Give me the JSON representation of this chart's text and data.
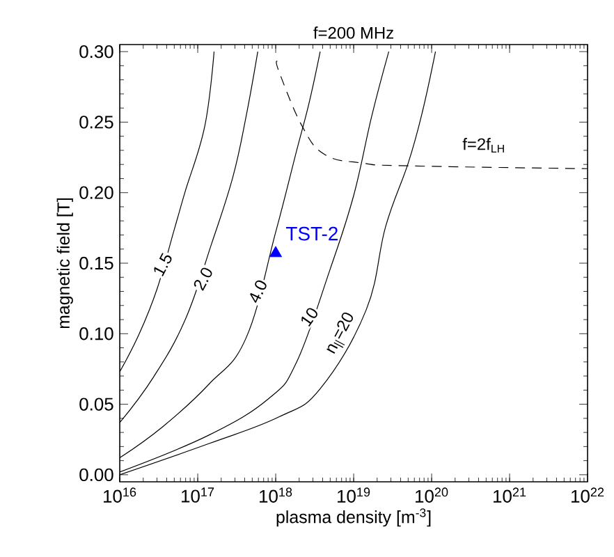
{
  "chart_data": {
    "type": "line",
    "title": "f=200 MHz",
    "xlabel": "plasma density [m$^{-3}$]",
    "ylabel": "magnetic field [T]",
    "log": "x",
    "grid": false,
    "legend": false,
    "marker": "none",
    "xlim": [
      1e+16,
      1e+22
    ],
    "ylim": [
      -0.005,
      0.305
    ],
    "xticks": [
      {
        "value": 1e+16,
        "label": "10$^{16}$"
      },
      {
        "value": 1e+17,
        "label": "10$^{17}$"
      },
      {
        "value": 1e+18,
        "label": "10$^{18}$"
      },
      {
        "value": 1e+19,
        "label": "10$^{19}$"
      },
      {
        "value": 1e+20,
        "label": "10$^{20}$"
      },
      {
        "value": 1e+21,
        "label": "10$^{21}$"
      },
      {
        "value": 1e+22,
        "label": "10$^{22}$"
      }
    ],
    "yticks": [
      {
        "value": 0,
        "label": "0.00"
      },
      {
        "value": 0.05,
        "label": "0.05"
      },
      {
        "value": 0.1,
        "label": "0.10"
      },
      {
        "value": 0.15,
        "label": "0.15"
      },
      {
        "value": 0.2,
        "label": "0.20"
      },
      {
        "value": 0.25,
        "label": "0.25"
      },
      {
        "value": 0.3,
        "label": "0.30"
      }
    ],
    "series": [
      {
        "color": "#000000",
        "line_style": "solid",
        "x": [
          1e+16,
          1.78e+16,
          3.02e+16,
          5.01e+16,
          6.92e+16,
          1.23e+17,
          1.62e+17
        ],
        "values": [
          0.073,
          0.1,
          0.132,
          0.174,
          0.201,
          0.247,
          0.3
        ]
      },
      {
        "color": "#000000",
        "line_style": "solid",
        "x": [
          1e+16,
          2.69e+16,
          6.92e+16,
          1.51e+17,
          2.82e+17,
          4.17e+17,
          5.89e+17
        ],
        "values": [
          0.037,
          0.069,
          0.11,
          0.164,
          0.211,
          0.254,
          0.3
        ]
      },
      {
        "color": "#000000",
        "line_style": "solid",
        "x": [
          1e+16,
          3.55e+16,
          1.38e+17,
          4.17e+17,
          1e+18,
          1.86e+18,
          2.69e+18,
          3.72e+18
        ],
        "values": [
          0.012,
          0.034,
          0.064,
          0.097,
          0.172,
          0.23,
          0.264,
          0.3
        ]
      },
      {
        "color": "#000000",
        "line_style": "solid",
        "x": [
          1e+16,
          1.38e+17,
          8.13e+17,
          1.86e+18,
          5.01e+18,
          1e+19,
          1.7e+19,
          2.82e+19
        ],
        "values": [
          0.002,
          0.028,
          0.054,
          0.08,
          0.146,
          0.198,
          0.254,
          0.3
        ]
      },
      {
        "color": "#000000",
        "line_style": "solid",
        "x": [
          1e+16,
          1.38e+17,
          1.1e+18,
          3.72e+18,
          1.45e+19,
          2.57e+19,
          5.01e+19,
          7.59e+19,
          1.12e+20
        ],
        "values": [
          0.0,
          0.022,
          0.041,
          0.061,
          0.117,
          0.176,
          0.221,
          0.257,
          0.3
        ]
      },
      {
        "color": "#000000",
        "line_style": "dashed",
        "x": [
          1.05e+18,
          1.1e+18,
          2.19e+18,
          4.27e+18,
          1.29e+19,
          5.01e+19,
          1e+22
        ],
        "values": [
          0.293,
          0.286,
          0.247,
          0.227,
          0.221,
          0.219,
          0.217
        ]
      },
      {
        "type": "scatter",
        "name": "TST-2",
        "color": "#0000ff",
        "marker": "triangle",
        "x": [
          1e+18
        ],
        "values": [
          0.157
        ]
      }
    ],
    "annotations": [
      {
        "text": "1.5",
        "x": 3.55e+16,
        "y": 0.149
      },
      {
        "text": "2.0",
        "x": 1.17e+17,
        "y": 0.139
      },
      {
        "text": "4.0",
        "x": 5.89e+17,
        "y": 0.13
      },
      {
        "text": "10",
        "x": 2.69e+18,
        "y": 0.112
      },
      {
        "text": "n$_{||}$=20",
        "x": 6.92e+18,
        "y": 0.1
      },
      "f=2f$_{LH}$"
    ]
  }
}
